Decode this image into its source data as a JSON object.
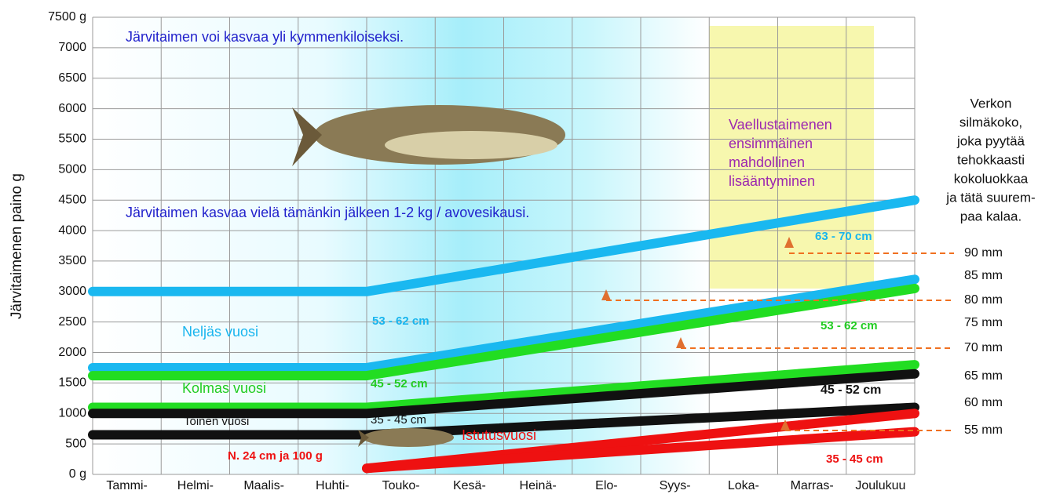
{
  "chart_data": {
    "type": "line",
    "y_label": "Järvitaimenen paino g",
    "categories": [
      "Tammi-",
      "Helmi-",
      "Maalis-",
      "Huhti-",
      "Touko-",
      "Kesä-",
      "Heinä-",
      "Elo-",
      "Syys-",
      "Loka-",
      "Marras-",
      "Joulukuu"
    ],
    "ylim": [
      0,
      7500
    ],
    "yticks": [
      {
        "value": 0,
        "label": "0 g"
      },
      500,
      1000,
      1500,
      2000,
      2500,
      3000,
      3500,
      4000,
      4500,
      5000,
      5500,
      6000,
      6500,
      7000,
      {
        "value": 7500,
        "label": "7500 g"
      }
    ],
    "grid": true,
    "series": [
      {
        "color": "#1ab8f0",
        "x": [
          0,
          4,
          12
        ],
        "values": [
          3000,
          3000,
          4500
        ]
      },
      {
        "color": "#1ab8f0",
        "x": [
          0,
          4,
          12
        ],
        "values": [
          1750,
          1750,
          3200
        ]
      },
      {
        "color": "#22dd22",
        "x": [
          0,
          4,
          12
        ],
        "values": [
          1620,
          1620,
          3050
        ]
      },
      {
        "color": "#22dd22",
        "x": [
          0,
          4,
          12
        ],
        "values": [
          1100,
          1100,
          1800
        ]
      },
      {
        "color": "#111111",
        "x": [
          0,
          4,
          12
        ],
        "values": [
          1000,
          1000,
          1650
        ]
      },
      {
        "color": "#111111",
        "x": [
          0,
          4,
          12
        ],
        "values": [
          650,
          650,
          1100
        ]
      },
      {
        "color": "#ee1111",
        "x": [
          4,
          12
        ],
        "values": [
          100,
          1000
        ]
      },
      {
        "color": "#ee1111",
        "x": [
          4,
          12
        ],
        "values": [
          100,
          700
        ]
      }
    ],
    "annotations": [
      "Järvitaimen voi kasvaa yli kymmenkiloiseksi.",
      "Järvitaimen kasvaa vielä tämänkin jälkeen 1-2 kg / avovesikausi.",
      "Neljäs vuosi",
      "Kolmas vuosi",
      "Toinen vuosi",
      "Istutusvuosi",
      "N. 24 cm ja 100 g",
      "53 - 62 cm",
      "45 - 52 cm",
      "35 - 45 cm",
      "63 - 70 cm",
      "53 - 62 cm",
      "45 - 52 cm",
      "35 - 45 cm"
    ],
    "spawning_note": [
      "Vaellustaimenen",
      "ensimmäinen",
      "mahdollinen",
      "lisääntyminen"
    ],
    "mesh_title": [
      "Verkon",
      "silmäkoko,",
      "joka pyytää",
      "tehokkaasti",
      "kokoluokkaa",
      "ja tätä suurem-",
      "paa kalaa."
    ],
    "mesh_labels": [
      "90 mm",
      "85 mm",
      "80 mm",
      "75 mm",
      "70 mm",
      "65 mm",
      "60 mm",
      "55 mm"
    ]
  }
}
